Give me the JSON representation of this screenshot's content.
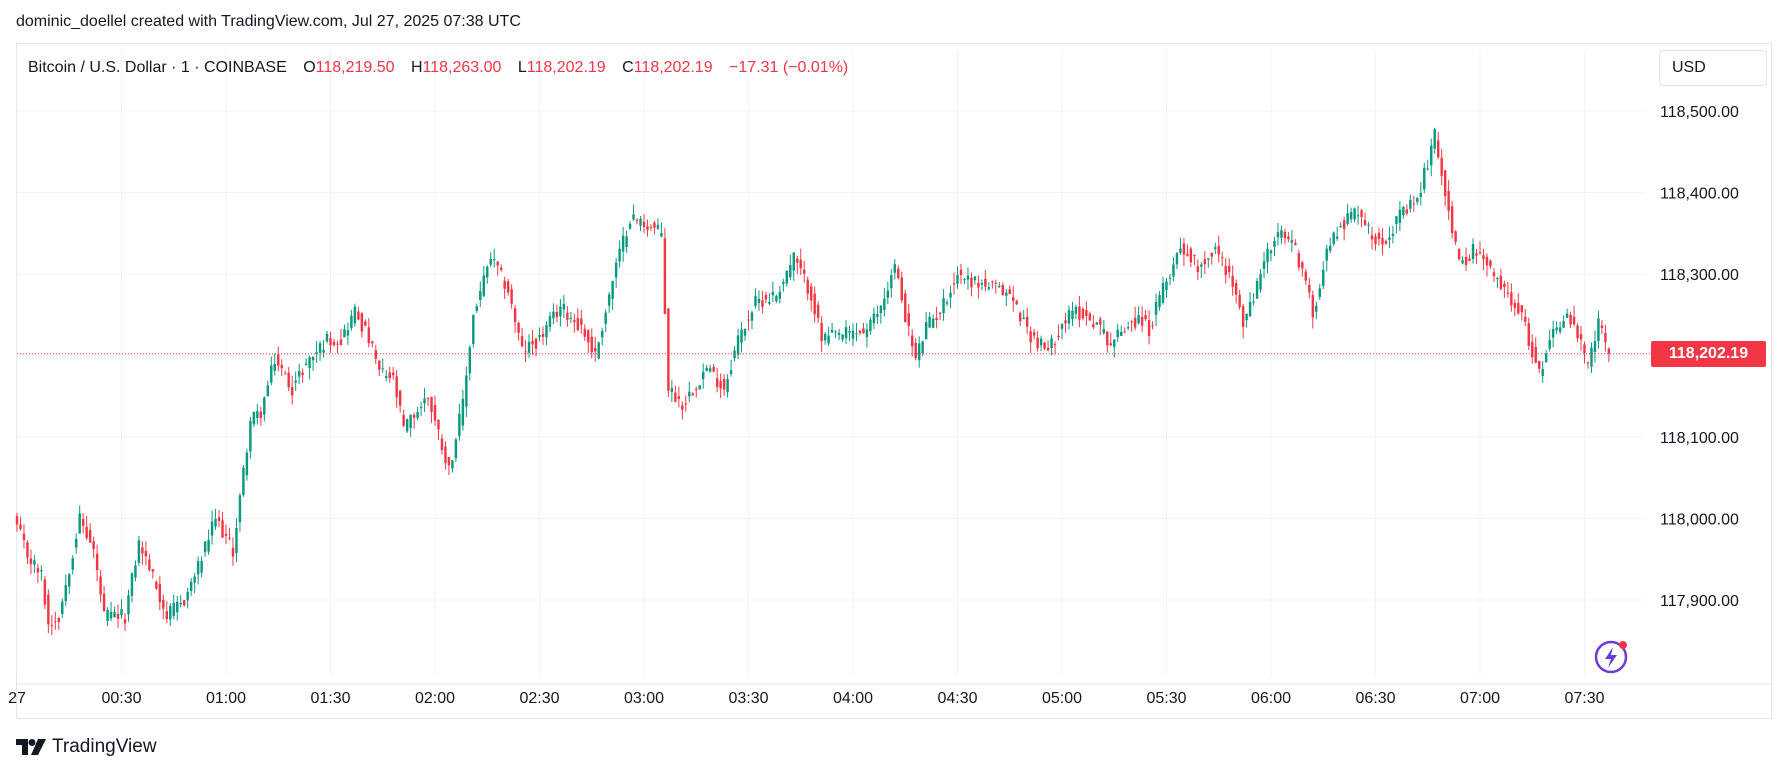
{
  "credit": "dominic_doellel created with TradingView.com, Jul 27, 2025 07:38 UTC",
  "header": {
    "symbol": "Bitcoin / U.S. Dollar · 1 · COINBASE",
    "o_label": "O",
    "o_value": "118,219.50",
    "h_label": "H",
    "h_value": "118,263.00",
    "l_label": "L",
    "l_value": "118,202.19",
    "c_label": "C",
    "c_value": "118,202.19",
    "change": "−17.31 (−0.01%)"
  },
  "currency": "USD",
  "last_price_label": "118,202.19",
  "footer_brand": "TradingView",
  "colors": {
    "up": "#089981",
    "down": "#f23645",
    "grid": "#f0f3fa",
    "axis_text": "#131722",
    "last_price": "#f23645"
  },
  "icons": {
    "brand": "tradingview-logo-icon",
    "flash": "lightning-assistant-icon"
  },
  "chart_data": {
    "type": "candlestick",
    "ylim": [
      117815,
      118555
    ],
    "y_ticks": [
      117900,
      118000,
      118100,
      118200,
      118300,
      118400,
      118500
    ],
    "y_tick_labels": [
      "117,900.00",
      "118,000.00",
      "118,100.00",
      "118,200.00",
      "118,300.00",
      "118,400.00",
      "118,500.00"
    ],
    "x_ticks": [
      "27",
      "00:30",
      "01:00",
      "01:30",
      "02:00",
      "02:30",
      "03:00",
      "03:30",
      "04:00",
      "04:30",
      "05:00",
      "05:30",
      "06:00",
      "06:30",
      "07:00",
      "07:30"
    ],
    "x_tick_minutes": [
      0,
      30,
      60,
      90,
      120,
      150,
      180,
      210,
      240,
      270,
      300,
      330,
      360,
      390,
      420,
      450
    ],
    "last_price": 118202.19,
    "anchors_minute_close": [
      [
        0,
        117990
      ],
      [
        3,
        117955
      ],
      [
        7,
        117930
      ],
      [
        9,
        117870
      ],
      [
        12,
        117880
      ],
      [
        18,
        118000
      ],
      [
        22,
        117960
      ],
      [
        25,
        117880
      ],
      [
        31,
        117880
      ],
      [
        35,
        117970
      ],
      [
        38,
        117940
      ],
      [
        43,
        117880
      ],
      [
        48,
        117900
      ],
      [
        52,
        117940
      ],
      [
        57,
        118000
      ],
      [
        62,
        117960
      ],
      [
        64,
        118025
      ],
      [
        67,
        118120
      ],
      [
        70,
        118130
      ],
      [
        74,
        118195
      ],
      [
        79,
        118160
      ],
      [
        83,
        118190
      ],
      [
        89,
        118220
      ],
      [
        93,
        118220
      ],
      [
        97,
        118255
      ],
      [
        101,
        118220
      ],
      [
        104,
        118180
      ],
      [
        108,
        118170
      ],
      [
        111,
        118110
      ],
      [
        118,
        118150
      ],
      [
        124,
        118060
      ],
      [
        128,
        118140
      ],
      [
        131,
        118250
      ],
      [
        136,
        118320
      ],
      [
        141,
        118280
      ],
      [
        145,
        118205
      ],
      [
        150,
        118220
      ],
      [
        156,
        118260
      ],
      [
        162,
        118235
      ],
      [
        166,
        118200
      ],
      [
        172,
        118310
      ],
      [
        176,
        118370
      ],
      [
        181,
        118360
      ],
      [
        185,
        118350
      ],
      [
        187,
        118160
      ],
      [
        191,
        118140
      ],
      [
        198,
        118185
      ],
      [
        203,
        118160
      ],
      [
        207,
        118220
      ],
      [
        212,
        118265
      ],
      [
        218,
        118275
      ],
      [
        223,
        118320
      ],
      [
        228,
        118275
      ],
      [
        231,
        118220
      ],
      [
        236,
        118225
      ],
      [
        244,
        118230
      ],
      [
        248,
        118260
      ],
      [
        252,
        118310
      ],
      [
        256,
        118230
      ],
      [
        258,
        118195
      ],
      [
        261,
        118235
      ],
      [
        265,
        118255
      ],
      [
        270,
        118300
      ],
      [
        275,
        118290
      ],
      [
        279,
        118285
      ],
      [
        285,
        118275
      ],
      [
        291,
        118225
      ],
      [
        296,
        118205
      ],
      [
        300,
        118240
      ],
      [
        304,
        118255
      ],
      [
        310,
        118240
      ],
      [
        314,
        118215
      ],
      [
        319,
        118240
      ],
      [
        323,
        118245
      ],
      [
        325,
        118230
      ],
      [
        328,
        118270
      ],
      [
        334,
        118335
      ],
      [
        339,
        118310
      ],
      [
        344,
        118330
      ],
      [
        348,
        118300
      ],
      [
        352,
        118240
      ],
      [
        355,
        118270
      ],
      [
        358,
        118320
      ],
      [
        363,
        118350
      ],
      [
        367,
        118330
      ],
      [
        370,
        118290
      ],
      [
        372,
        118250
      ],
      [
        376,
        118330
      ],
      [
        380,
        118360
      ],
      [
        385,
        118380
      ],
      [
        389,
        118345
      ],
      [
        393,
        118345
      ],
      [
        397,
        118370
      ],
      [
        402,
        118390
      ],
      [
        407,
        118470
      ],
      [
        411,
        118380
      ],
      [
        414,
        118310
      ],
      [
        418,
        118330
      ],
      [
        422,
        118310
      ],
      [
        426,
        118285
      ],
      [
        431,
        118260
      ],
      [
        434,
        118220
      ],
      [
        437,
        118175
      ],
      [
        440,
        118225
      ],
      [
        445,
        118250
      ],
      [
        448,
        118225
      ],
      [
        451,
        118185
      ],
      [
        454,
        118240
      ],
      [
        457,
        118202.19
      ]
    ]
  }
}
